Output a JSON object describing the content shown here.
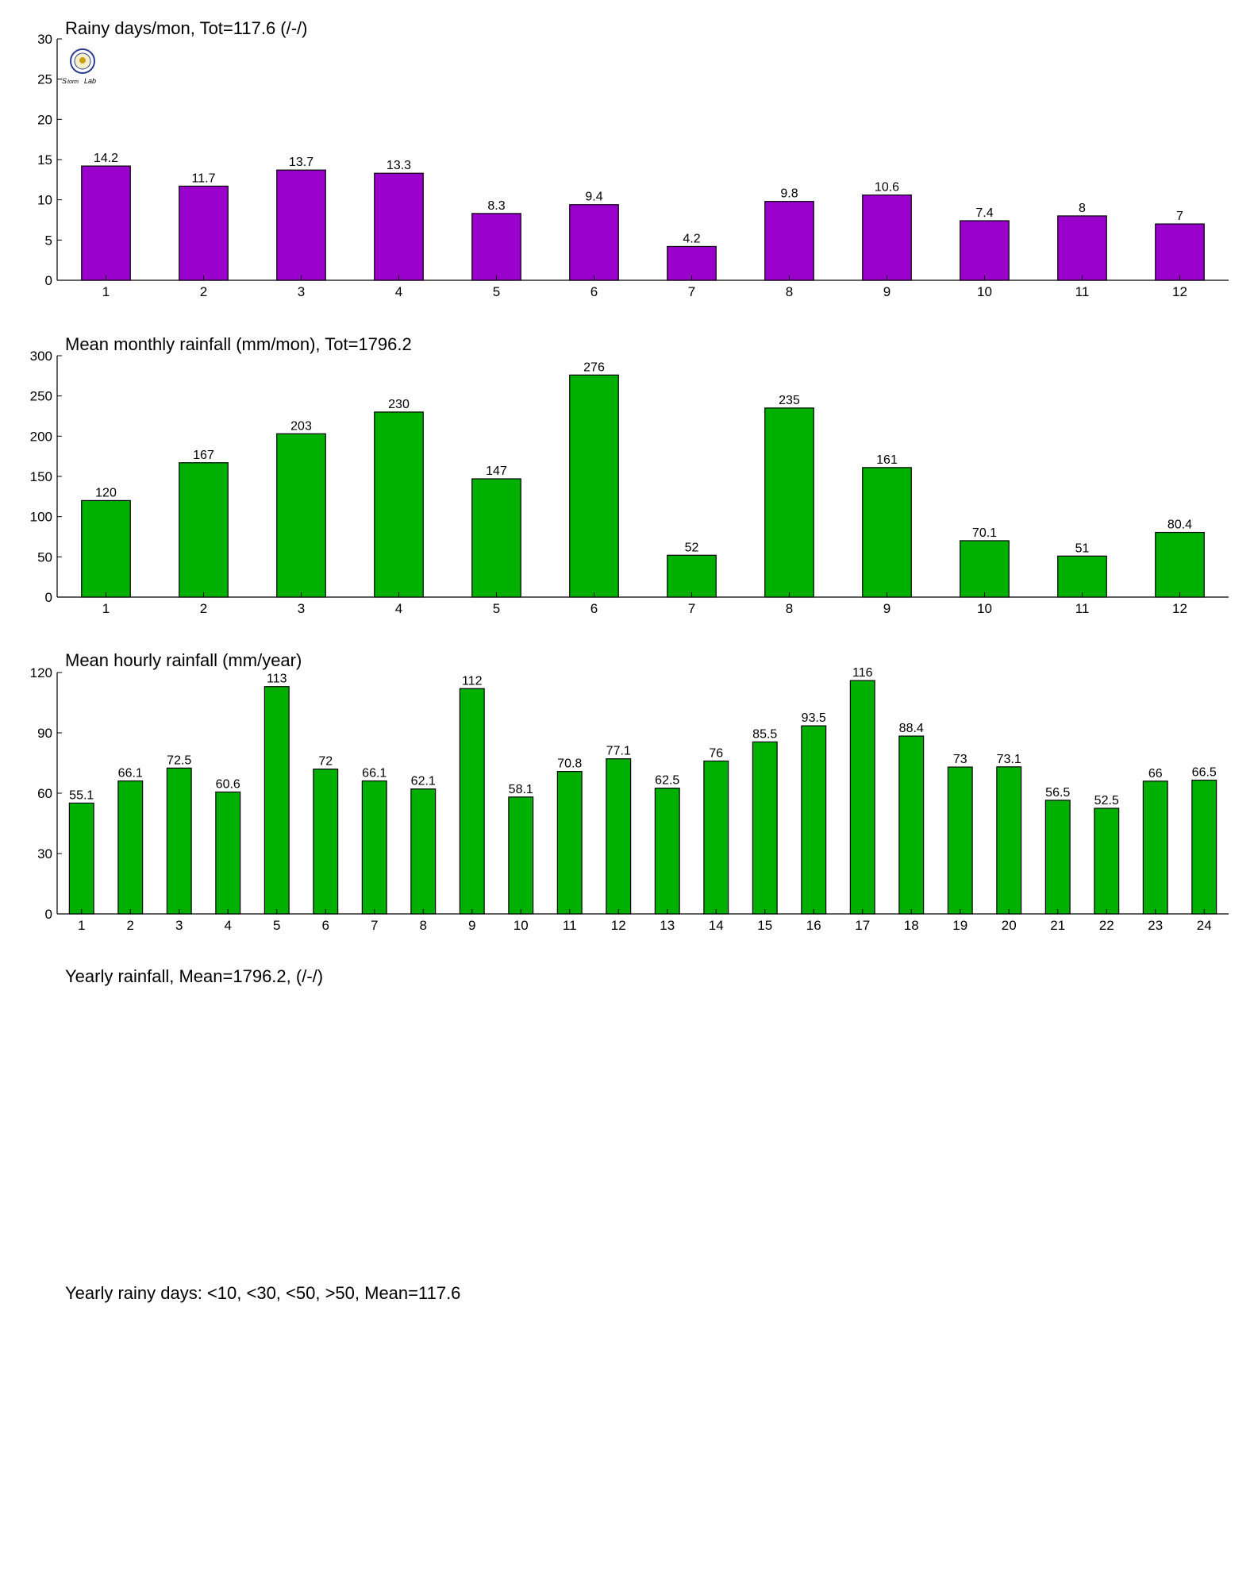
{
  "colors": {
    "purple": "#9900cc",
    "green": "#00b000",
    "axis": "#000000"
  },
  "logo": {
    "icon": "lab-seal-logo",
    "text": "Storm Lab"
  },
  "chart_data": [
    {
      "type": "bar",
      "title": "Rainy days/mon, Tot=117.6 (/-/)",
      "categories": [
        "1",
        "2",
        "3",
        "4",
        "5",
        "6",
        "7",
        "8",
        "9",
        "10",
        "11",
        "12"
      ],
      "values": [
        14.2,
        11.7,
        13.7,
        13.3,
        8.3,
        9.4,
        4.2,
        9.8,
        10.6,
        7.4,
        8,
        7
      ],
      "value_labels": [
        "14.2",
        "11.7",
        "13.7",
        "13.3",
        "8.3",
        "9.4",
        "4.2",
        "9.8",
        "10.6",
        "7.4",
        "8",
        "7"
      ],
      "ylim": [
        0,
        30
      ],
      "yticks": [
        0,
        5,
        10,
        15,
        20,
        25,
        30
      ],
      "xlabel": "",
      "ylabel": "",
      "color": "purple"
    },
    {
      "type": "bar",
      "title": "Mean monthly rainfall (mm/mon), Tot=1796.2",
      "categories": [
        "1",
        "2",
        "3",
        "4",
        "5",
        "6",
        "7",
        "8",
        "9",
        "10",
        "11",
        "12"
      ],
      "values": [
        120,
        167,
        203,
        230,
        147,
        276,
        52,
        235,
        161,
        70.1,
        51,
        80.4
      ],
      "value_labels": [
        "120",
        "167",
        "203",
        "230",
        "147",
        "276",
        "52",
        "235",
        "161",
        "70.1",
        "51",
        "80.4"
      ],
      "ylim": [
        0,
        300
      ],
      "yticks": [
        0,
        50,
        100,
        150,
        200,
        250,
        300
      ],
      "xlabel": "",
      "ylabel": "",
      "color": "green"
    },
    {
      "type": "bar",
      "title": "Mean hourly rainfall (mm/year)",
      "categories": [
        "1",
        "2",
        "3",
        "4",
        "5",
        "6",
        "7",
        "8",
        "9",
        "10",
        "11",
        "12",
        "13",
        "14",
        "15",
        "16",
        "17",
        "18",
        "19",
        "20",
        "21",
        "22",
        "23",
        "24"
      ],
      "values": [
        55.1,
        66.1,
        72.5,
        60.6,
        113,
        72,
        66.1,
        62.1,
        112,
        58.1,
        70.8,
        77.1,
        62.5,
        76,
        85.5,
        93.5,
        116,
        88.4,
        73,
        73.1,
        56.5,
        52.5,
        66,
        66.5
      ],
      "value_labels": [
        "55.1",
        "66.1",
        "72.5",
        "60.6",
        "113",
        "72",
        "66.1",
        "62.1",
        "112",
        "58.1",
        "70.8",
        "77.1",
        "62.5",
        "76",
        "85.5",
        "93.5",
        "116",
        "88.4",
        "73",
        "73.1",
        "56.5",
        "52.5",
        "66",
        "66.5"
      ],
      "ylim": [
        0,
        120
      ],
      "yticks": [
        0,
        30,
        60,
        90,
        120
      ],
      "xlabel": "",
      "ylabel": "",
      "color": "green"
    },
    {
      "type": "bar",
      "title": "Yearly rainfall, Mean=1796.2, (/-/)"
    },
    {
      "type": "bar",
      "title": "Yearly rainy days: <10, <30, <50, >50, Mean=117.6"
    }
  ]
}
